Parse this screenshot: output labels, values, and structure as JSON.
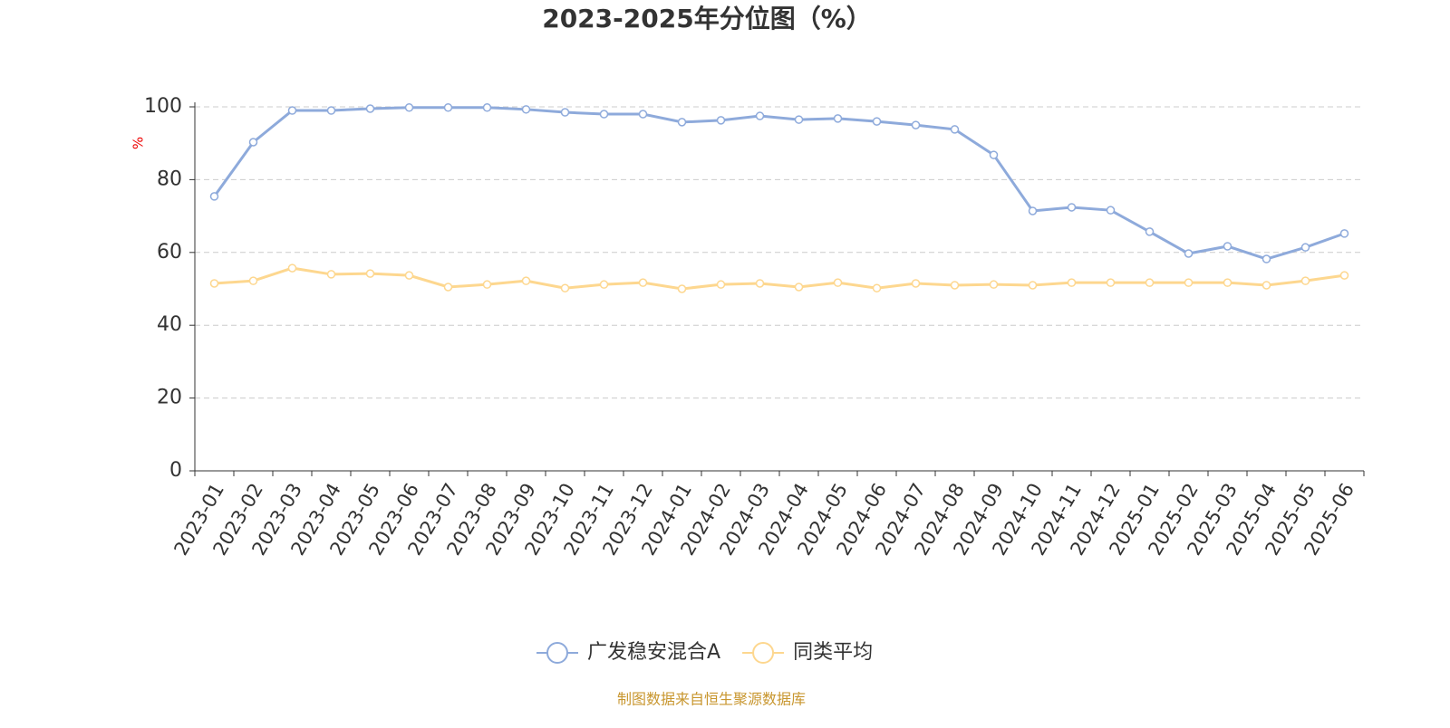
{
  "chart_data": {
    "type": "line",
    "title": "2023-2025年分位图（%）",
    "y_label": "%",
    "source": "制图数据来自恒生聚源数据库",
    "categories": [
      "2023-01",
      "2023-02",
      "2023-03",
      "2023-04",
      "2023-05",
      "2023-06",
      "2023-07",
      "2023-08",
      "2023-09",
      "2023-10",
      "2023-11",
      "2023-12",
      "2024-01",
      "2024-02",
      "2024-03",
      "2024-04",
      "2024-05",
      "2024-06",
      "2024-07",
      "2024-08",
      "2024-09",
      "2024-10",
      "2024-11",
      "2024-12",
      "2025-01",
      "2025-02",
      "2025-03",
      "2025-04",
      "2025-05",
      "2025-06"
    ],
    "series": [
      {
        "name": "广发稳安混合A",
        "color": "#8eaadb",
        "values": [
          75.4,
          90.3,
          99.0,
          99.0,
          99.5,
          99.8,
          99.8,
          99.8,
          99.3,
          98.5,
          98.0,
          98.0,
          95.8,
          96.3,
          97.5,
          96.5,
          96.8,
          96.0,
          95.0,
          93.8,
          86.8,
          71.4,
          72.4,
          71.6,
          65.7,
          59.7,
          61.7,
          58.2,
          61.4,
          65.2
        ]
      },
      {
        "name": "同类平均",
        "color": "#fdd78f",
        "values": [
          51.5,
          52.2,
          55.7,
          54.0,
          54.2,
          53.7,
          50.5,
          51.2,
          52.2,
          50.2,
          51.2,
          51.7,
          50.0,
          51.2,
          51.5,
          50.5,
          51.7,
          50.2,
          51.5,
          51.0,
          51.2,
          51.0,
          51.7,
          51.7,
          51.7,
          51.7,
          51.7,
          51.0,
          52.2,
          53.7
        ]
      }
    ],
    "ylim": [
      0,
      100
    ],
    "yticks": [
      0,
      20,
      40,
      60,
      80,
      100
    ],
    "grid": true
  }
}
